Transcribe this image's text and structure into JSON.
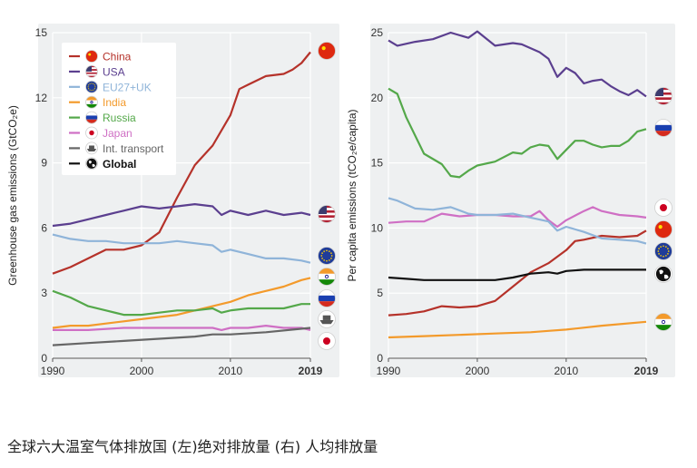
{
  "caption": "全球六大温室气体排放国 (左)绝对排放量 (右) 人均排放量",
  "chart_data": [
    {
      "type": "line",
      "ylabel": "Greenhouse gas emissions (GtCO₂e)",
      "xlim": [
        1990,
        2019
      ],
      "ylim": [
        0,
        15
      ],
      "xticks": [
        "1990",
        "2000",
        "2010",
        "2019"
      ],
      "yticks": [
        "0",
        "3",
        "6",
        "9",
        "12",
        "15"
      ],
      "grid": true,
      "legend_position": "top-left",
      "series": [
        {
          "name": "China",
          "color": "#b5322a",
          "icon": "china-flag-icon",
          "x": [
            1990,
            1992,
            1994,
            1996,
            1998,
            2000,
            2002,
            2004,
            2006,
            2008,
            2010,
            2011,
            2012,
            2014,
            2016,
            2017,
            2018,
            2019
          ],
          "values": [
            3.9,
            4.2,
            4.6,
            5.0,
            5.0,
            5.2,
            5.8,
            7.4,
            8.9,
            9.8,
            11.2,
            12.4,
            12.6,
            13.0,
            13.1,
            13.3,
            13.6,
            14.1
          ]
        },
        {
          "name": "USA",
          "color": "#5b3f8f",
          "icon": "usa-flag-icon",
          "x": [
            1990,
            1992,
            1994,
            1996,
            1998,
            2000,
            2002,
            2004,
            2006,
            2008,
            2009,
            2010,
            2012,
            2014,
            2016,
            2018,
            2019
          ],
          "values": [
            6.1,
            6.2,
            6.4,
            6.6,
            6.8,
            7.0,
            6.9,
            7.0,
            7.1,
            7.0,
            6.6,
            6.8,
            6.6,
            6.8,
            6.6,
            6.7,
            6.6
          ]
        },
        {
          "name": "EU27+UK",
          "color": "#8fb4d9",
          "icon": "eu-flag-icon",
          "x": [
            1990,
            1992,
            1994,
            1996,
            1998,
            2000,
            2002,
            2004,
            2006,
            2008,
            2009,
            2010,
            2012,
            2014,
            2016,
            2018,
            2019
          ],
          "values": [
            5.7,
            5.5,
            5.4,
            5.4,
            5.3,
            5.3,
            5.3,
            5.4,
            5.3,
            5.2,
            4.9,
            5.0,
            4.8,
            4.6,
            4.6,
            4.5,
            4.4
          ]
        },
        {
          "name": "India",
          "color": "#f39a2b",
          "icon": "india-flag-icon",
          "x": [
            1990,
            1992,
            1994,
            1996,
            1998,
            2000,
            2002,
            2004,
            2006,
            2008,
            2010,
            2012,
            2014,
            2016,
            2018,
            2019
          ],
          "values": [
            1.4,
            1.5,
            1.5,
            1.6,
            1.7,
            1.8,
            1.9,
            2.0,
            2.2,
            2.4,
            2.6,
            2.9,
            3.1,
            3.3,
            3.6,
            3.7
          ]
        },
        {
          "name": "Russia",
          "color": "#54a84a",
          "icon": "russia-flag-icon",
          "x": [
            1990,
            1992,
            1994,
            1996,
            1998,
            2000,
            2002,
            2004,
            2006,
            2008,
            2009,
            2010,
            2012,
            2014,
            2016,
            2018,
            2019
          ],
          "values": [
            3.1,
            2.8,
            2.4,
            2.2,
            2.0,
            2.0,
            2.1,
            2.2,
            2.2,
            2.3,
            2.1,
            2.2,
            2.3,
            2.3,
            2.3,
            2.5,
            2.5
          ]
        },
        {
          "name": "Japan",
          "color": "#cf6fc4",
          "icon": "japan-flag-icon",
          "x": [
            1990,
            1994,
            1998,
            2002,
            2006,
            2008,
            2009,
            2010,
            2012,
            2014,
            2016,
            2018,
            2019
          ],
          "values": [
            1.3,
            1.3,
            1.4,
            1.4,
            1.4,
            1.4,
            1.3,
            1.4,
            1.4,
            1.5,
            1.4,
            1.4,
            1.3
          ]
        },
        {
          "name": "Int. transport",
          "color": "#666666",
          "icon": "ship-icon",
          "x": [
            1990,
            1994,
            1998,
            2002,
            2006,
            2008,
            2010,
            2014,
            2019
          ],
          "values": [
            0.6,
            0.7,
            0.8,
            0.9,
            1.0,
            1.1,
            1.1,
            1.2,
            1.4
          ]
        },
        {
          "name": "Global",
          "color": "#111111",
          "icon": "globe-icon",
          "x": [],
          "values": []
        }
      ]
    },
    {
      "type": "line",
      "ylabel": "Per capita emissions (tCO₂e/capita)",
      "xlim": [
        1990,
        2019
      ],
      "ylim": [
        0,
        25
      ],
      "xticks": [
        "1990",
        "2000",
        "2010",
        "2019"
      ],
      "yticks": [
        "0",
        "5",
        "10",
        "15",
        "20",
        "25"
      ],
      "grid": true,
      "series": [
        {
          "name": "USA",
          "color": "#5b3f8f",
          "icon": "usa-flag-icon",
          "x": [
            1990,
            1991,
            1993,
            1995,
            1997,
            1999,
            2000,
            2002,
            2004,
            2005,
            2007,
            2008,
            2009,
            2010,
            2011,
            2012,
            2013,
            2014,
            2015,
            2016,
            2017,
            2018,
            2019
          ],
          "values": [
            24.4,
            24.0,
            24.3,
            24.5,
            25.0,
            24.6,
            25.1,
            24.0,
            24.2,
            24.1,
            23.5,
            23.0,
            21.6,
            22.3,
            21.9,
            21.1,
            21.3,
            21.4,
            20.9,
            20.5,
            20.2,
            20.6,
            20.1
          ]
        },
        {
          "name": "Russia",
          "color": "#54a84a",
          "icon": "russia-flag-icon",
          "x": [
            1990,
            1991,
            1992,
            1994,
            1996,
            1997,
            1998,
            1999,
            2000,
            2002,
            2004,
            2005,
            2006,
            2007,
            2008,
            2009,
            2010,
            2011,
            2012,
            2013,
            2014,
            2015,
            2016,
            2017,
            2018,
            2019
          ],
          "values": [
            20.7,
            20.3,
            18.5,
            15.7,
            14.9,
            14.0,
            13.9,
            14.4,
            14.8,
            15.1,
            15.8,
            15.7,
            16.2,
            16.4,
            16.3,
            15.3,
            16.0,
            16.7,
            16.7,
            16.4,
            16.2,
            16.3,
            16.3,
            16.7,
            17.4,
            17.6
          ]
        },
        {
          "name": "Japan",
          "color": "#cf6fc4",
          "icon": "japan-flag-icon",
          "x": [
            1990,
            1992,
            1994,
            1996,
            1998,
            2000,
            2002,
            2004,
            2006,
            2007,
            2008,
            2009,
            2010,
            2012,
            2013,
            2014,
            2016,
            2018,
            2019
          ],
          "values": [
            10.4,
            10.5,
            10.5,
            11.1,
            10.9,
            11.0,
            11.0,
            10.9,
            10.9,
            11.3,
            10.6,
            10.1,
            10.6,
            11.3,
            11.6,
            11.3,
            11.0,
            10.9,
            10.8
          ]
        },
        {
          "name": "China",
          "color": "#b5322a",
          "icon": "china-flag-icon",
          "x": [
            1990,
            1992,
            1994,
            1996,
            1998,
            2000,
            2002,
            2004,
            2006,
            2008,
            2010,
            2011,
            2012,
            2014,
            2016,
            2018,
            2019
          ],
          "values": [
            3.3,
            3.4,
            3.6,
            4.0,
            3.9,
            4.0,
            4.4,
            5.5,
            6.6,
            7.3,
            8.3,
            9.0,
            9.1,
            9.4,
            9.3,
            9.4,
            9.8
          ]
        },
        {
          "name": "EU27+UK",
          "color": "#8fb4d9",
          "icon": "eu-flag-icon",
          "x": [
            1990,
            1991,
            1993,
            1995,
            1997,
            1999,
            2000,
            2002,
            2004,
            2006,
            2008,
            2009,
            2010,
            2012,
            2014,
            2016,
            2018,
            2019
          ],
          "values": [
            12.3,
            12.1,
            11.5,
            11.4,
            11.6,
            11.1,
            11.0,
            11.0,
            11.1,
            10.8,
            10.5,
            9.8,
            10.1,
            9.7,
            9.2,
            9.1,
            9.0,
            8.8
          ]
        },
        {
          "name": "Global",
          "color": "#111111",
          "icon": "globe-icon",
          "x": [
            1990,
            1992,
            1994,
            1996,
            1998,
            2000,
            2002,
            2004,
            2006,
            2008,
            2009,
            2010,
            2012,
            2014,
            2016,
            2018,
            2019
          ],
          "values": [
            6.2,
            6.1,
            6.0,
            6.0,
            6.0,
            6.0,
            6.0,
            6.2,
            6.5,
            6.6,
            6.5,
            6.7,
            6.8,
            6.8,
            6.8,
            6.8,
            6.8
          ]
        },
        {
          "name": "India",
          "color": "#f39a2b",
          "icon": "india-flag-icon",
          "x": [
            1990,
            1994,
            1998,
            2002,
            2006,
            2008,
            2010,
            2014,
            2019
          ],
          "values": [
            1.6,
            1.7,
            1.8,
            1.9,
            2.0,
            2.1,
            2.2,
            2.5,
            2.8
          ]
        }
      ]
    }
  ]
}
